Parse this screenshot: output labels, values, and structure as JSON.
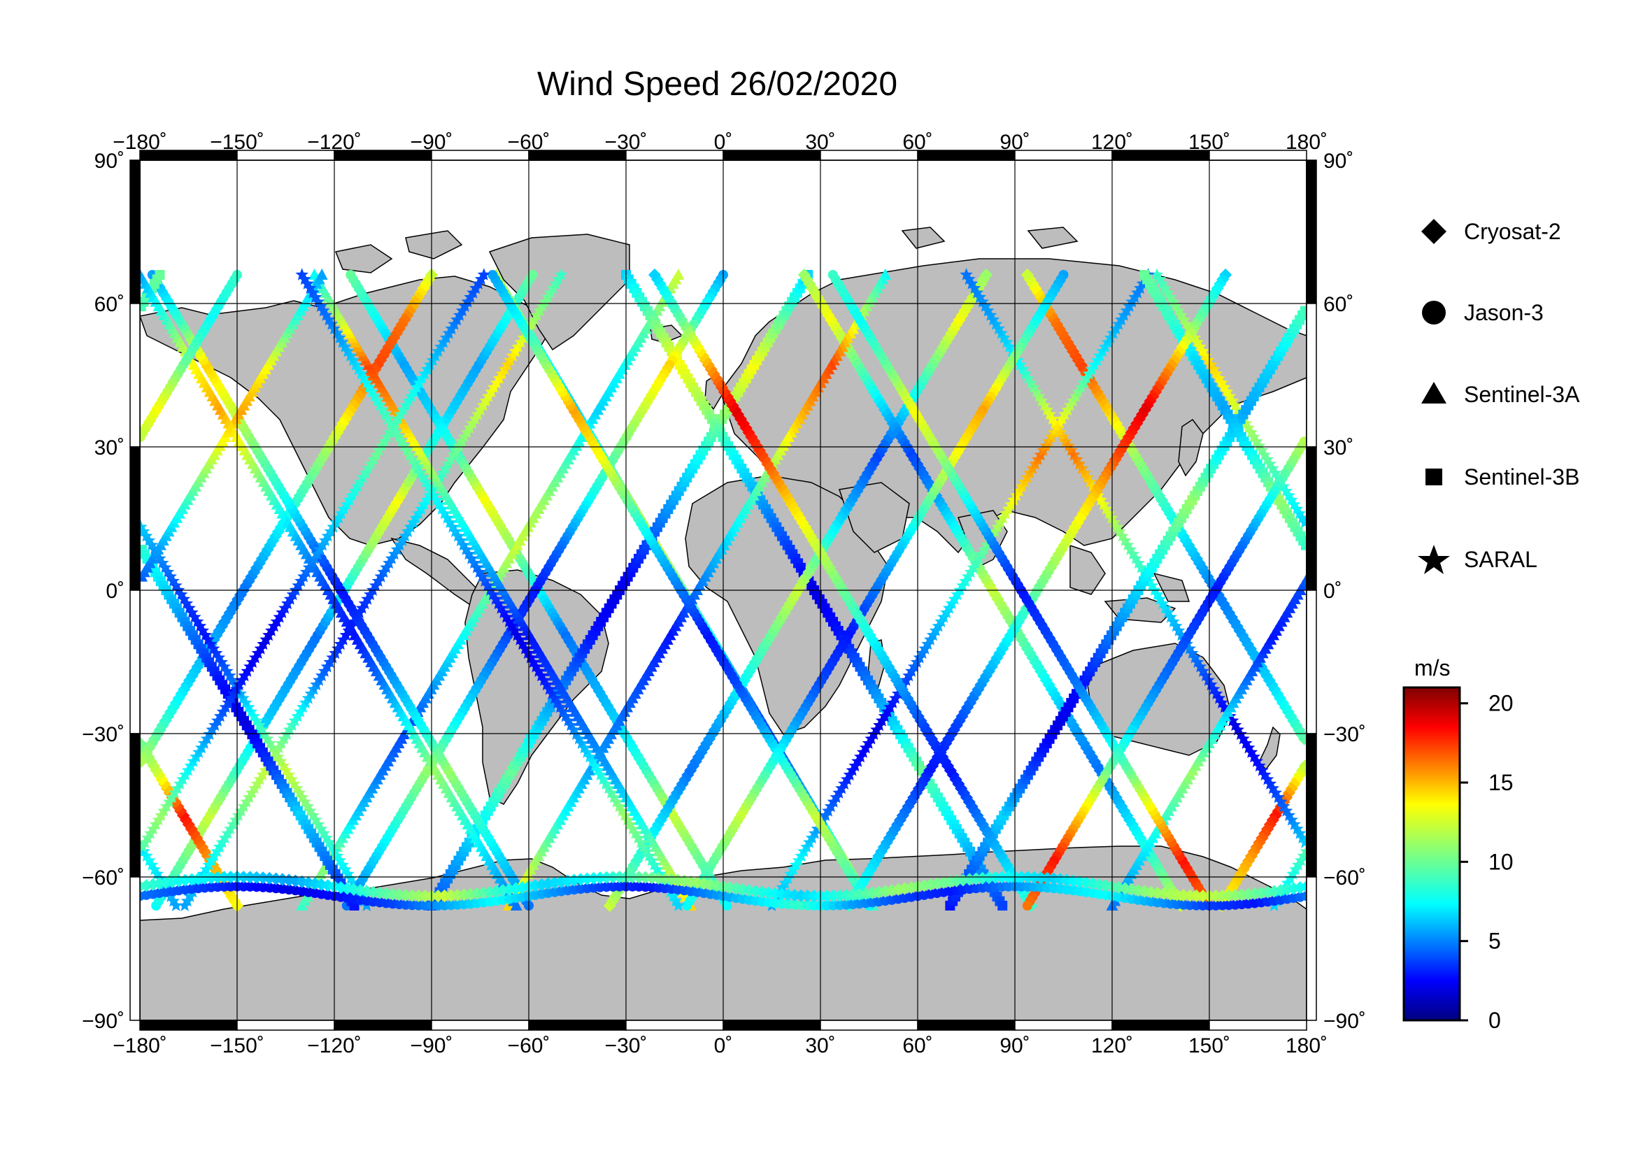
{
  "title": "Wind Speed 26/02/2020",
  "map": {
    "projection": "equirectangular",
    "lon_range": [
      -180,
      180
    ],
    "lat_range": [
      -90,
      90
    ],
    "graticule_step_lon": 30,
    "graticule_step_lat": 30,
    "land_color": "#bdbdbd",
    "ocean_color": "#ffffff",
    "lon_tick_labels": [
      "−180˚",
      "−150˚",
      "−120˚",
      "−90˚",
      "−60˚",
      "−30˚",
      "0˚",
      "30˚",
      "60˚",
      "90˚",
      "120˚",
      "150˚",
      "180˚"
    ],
    "lat_tick_labels_left": [
      "90˚",
      "60˚",
      "30˚",
      "0˚",
      "−30˚",
      "−60˚",
      "−90˚"
    ],
    "lat_tick_labels_right": [
      "90˚",
      "60˚",
      "30˚",
      "0˚",
      "−30˚",
      "−60˚",
      "−90˚"
    ]
  },
  "legend": {
    "items": [
      {
        "name": "Cryosat-2",
        "marker": "diamond"
      },
      {
        "name": "Jason-3",
        "marker": "circle"
      },
      {
        "name": "Sentinel-3A",
        "marker": "triangle"
      },
      {
        "name": "Sentinel-3B",
        "marker": "square"
      },
      {
        "name": "SARAL",
        "marker": "star"
      }
    ]
  },
  "colorbar": {
    "unit": "m/s",
    "min": 0,
    "max": 21,
    "ticks": [
      "0",
      "5",
      "10",
      "15",
      "20"
    ],
    "tick_values": [
      0,
      5,
      10,
      15,
      20
    ],
    "colormap": "jet"
  },
  "tracks": [
    {
      "sat": "Jason-3",
      "lon0": -175,
      "slope": 0.55,
      "speeds": [
        8,
        10,
        12,
        9,
        7,
        6,
        5,
        8,
        11,
        13,
        9,
        7,
        6,
        8,
        10
      ]
    },
    {
      "sat": "Cryosat-2",
      "lon0": -150,
      "slope": -0.55,
      "speeds": [
        13,
        15,
        18,
        12,
        9,
        7,
        6,
        5,
        7,
        9,
        11,
        14,
        17,
        16,
        12
      ]
    },
    {
      "sat": "Sentinel-3A",
      "lon0": -130,
      "slope": 0.55,
      "speeds": [
        9,
        11,
        7,
        5,
        4,
        6,
        8,
        10,
        12,
        11,
        9,
        7,
        8,
        10,
        12
      ]
    },
    {
      "sat": "SARAL",
      "lon0": -110,
      "slope": -0.55,
      "speeds": [
        6,
        8,
        10,
        12,
        9,
        5,
        3,
        4,
        6,
        8,
        10,
        12,
        14,
        11,
        9
      ]
    },
    {
      "sat": "Sentinel-3B",
      "lon0": -90,
      "slope": 0.55,
      "speeds": [
        4,
        6,
        8,
        10,
        7,
        5,
        3,
        2,
        4,
        6,
        8,
        11,
        13,
        10,
        7
      ]
    },
    {
      "sat": "Jason-3",
      "lon0": -60,
      "slope": -0.55,
      "speeds": [
        5,
        7,
        9,
        11,
        8,
        6,
        4,
        3,
        5,
        8,
        10,
        12,
        14,
        9,
        6
      ]
    },
    {
      "sat": "Cryosat-2",
      "lon0": -35,
      "slope": 0.55,
      "speeds": [
        12,
        9,
        7,
        5,
        6,
        8,
        10,
        12,
        9,
        6,
        4,
        7,
        10,
        13,
        11
      ]
    },
    {
      "sat": "Sentinel-3A",
      "lon0": -10,
      "slope": -0.55,
      "speeds": [
        14,
        11,
        8,
        6,
        5,
        4,
        3,
        5,
        7,
        9,
        12,
        15,
        17,
        12,
        8
      ]
    },
    {
      "sat": "SARAL",
      "lon0": 15,
      "slope": 0.55,
      "speeds": [
        6,
        8,
        5,
        3,
        2,
        4,
        6,
        8,
        10,
        13,
        16,
        12,
        8,
        6,
        5
      ]
    },
    {
      "sat": "Jason-3",
      "lon0": 45,
      "slope": -0.55,
      "speeds": [
        8,
        10,
        12,
        9,
        6,
        4,
        3,
        5,
        7,
        10,
        13,
        15,
        11,
        8,
        6
      ]
    },
    {
      "sat": "Sentinel-3B",
      "lon0": 70,
      "slope": 0.55,
      "speeds": [
        3,
        5,
        7,
        4,
        2,
        3,
        5,
        7,
        9,
        11,
        8,
        6,
        7,
        9,
        10
      ]
    },
    {
      "sat": "Cryosat-2",
      "lon0": 95,
      "slope": -0.55,
      "speeds": [
        9,
        7,
        5,
        3,
        4,
        6,
        8,
        10,
        12,
        14,
        17,
        19,
        15,
        10,
        7
      ]
    },
    {
      "sat": "Sentinel-3A",
      "lon0": 120,
      "slope": 0.55,
      "speeds": [
        5,
        7,
        9,
        11,
        8,
        5,
        3,
        4,
        6,
        9,
        12,
        15,
        13,
        9,
        6
      ]
    },
    {
      "sat": "Jason-3",
      "lon0": 150,
      "slope": -0.55,
      "speeds": [
        16,
        18,
        14,
        10,
        7,
        5,
        4,
        3,
        5,
        8,
        11,
        13,
        10,
        8,
        9
      ]
    },
    {
      "sat": "SARAL",
      "lon0": 170,
      "slope": 0.55,
      "speeds": [
        7,
        9,
        11,
        8,
        5,
        3,
        2,
        4,
        6,
        8,
        10,
        9,
        7,
        5,
        4
      ]
    }
  ],
  "antarctic_tracks": [
    {
      "sat": "Jason-3",
      "lat": -64,
      "speeds": [
        5,
        4,
        3,
        2,
        3,
        4,
        6,
        8,
        6,
        4,
        3,
        5,
        7,
        9,
        6,
        4,
        3,
        5,
        7,
        8,
        6,
        4,
        3,
        5
      ]
    },
    {
      "sat": "Cryosat-2",
      "lat": -62,
      "speeds": [
        9,
        8,
        7,
        6,
        8,
        10,
        12,
        9,
        7,
        8,
        10,
        11,
        9,
        7,
        9,
        11,
        10,
        8,
        7,
        9,
        11,
        12,
        10,
        8
      ]
    }
  ]
}
